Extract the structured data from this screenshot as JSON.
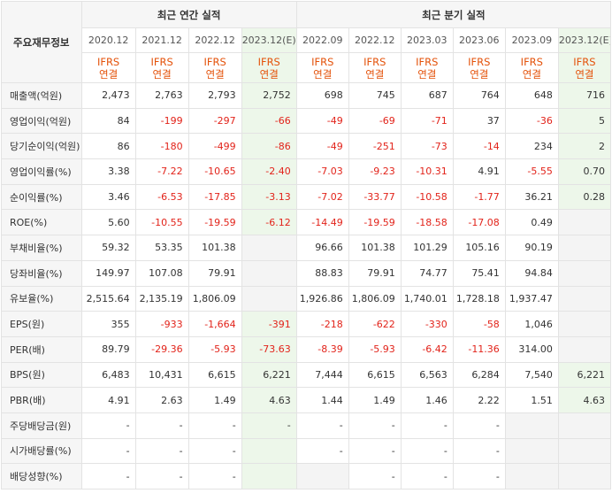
{
  "header": {
    "row_label": "주요재무정보",
    "annual_title": "최근 연간 실적",
    "quarter_title": "최근 분기 실적",
    "periods": [
      "2020.12",
      "2021.12",
      "2022.12",
      "2023.12(E)",
      "2022.09",
      "2022.12",
      "2023.03",
      "2023.06",
      "2023.09",
      "2023.12(E)"
    ],
    "standard_line1": "IFRS",
    "standard_line2": "연결"
  },
  "rows": [
    {
      "label": "매출액(억원)",
      "values": [
        "2,473",
        "2,763",
        "2,793",
        "2,752",
        "698",
        "745",
        "687",
        "764",
        "648",
        "716"
      ]
    },
    {
      "label": "영업이익(억원)",
      "values": [
        "84",
        "-199",
        "-297",
        "-66",
        "-49",
        "-69",
        "-71",
        "37",
        "-36",
        "5"
      ]
    },
    {
      "label": "당기순이익(억원)",
      "values": [
        "86",
        "-180",
        "-499",
        "-86",
        "-49",
        "-251",
        "-73",
        "-14",
        "234",
        "2"
      ]
    },
    {
      "label": "영업이익률(%)",
      "values": [
        "3.38",
        "-7.22",
        "-10.65",
        "-2.40",
        "-7.03",
        "-9.23",
        "-10.31",
        "4.91",
        "-5.55",
        "0.70"
      ]
    },
    {
      "label": "순이익률(%)",
      "values": [
        "3.46",
        "-6.53",
        "-17.85",
        "-3.13",
        "-7.02",
        "-33.77",
        "-10.58",
        "-1.77",
        "36.21",
        "0.28"
      ]
    },
    {
      "label": "ROE(%)",
      "values": [
        "5.60",
        "-10.55",
        "-19.59",
        "-6.12",
        "-14.49",
        "-19.59",
        "-18.58",
        "-17.08",
        "0.49",
        ""
      ]
    },
    {
      "label": "부채비율(%)",
      "values": [
        "59.32",
        "53.35",
        "101.38",
        "",
        "96.66",
        "101.38",
        "101.29",
        "105.16",
        "90.19",
        ""
      ]
    },
    {
      "label": "당좌비율(%)",
      "values": [
        "149.97",
        "107.08",
        "79.91",
        "",
        "88.83",
        "79.91",
        "74.77",
        "75.41",
        "94.84",
        ""
      ]
    },
    {
      "label": "유보율(%)",
      "values": [
        "2,515.64",
        "2,135.19",
        "1,806.09",
        "",
        "1,926.86",
        "1,806.09",
        "1,740.01",
        "1,728.18",
        "1,937.47",
        ""
      ]
    },
    {
      "label": "EPS(원)",
      "values": [
        "355",
        "-933",
        "-1,664",
        "-391",
        "-218",
        "-622",
        "-330",
        "-58",
        "1,046",
        ""
      ]
    },
    {
      "label": "PER(배)",
      "values": [
        "89.79",
        "-29.36",
        "-5.93",
        "-73.63",
        "-8.39",
        "-5.93",
        "-6.42",
        "-11.36",
        "314.00",
        ""
      ]
    },
    {
      "label": "BPS(원)",
      "values": [
        "6,483",
        "10,431",
        "6,615",
        "6,221",
        "7,444",
        "6,615",
        "6,563",
        "6,284",
        "7,540",
        "6,221"
      ]
    },
    {
      "label": "PBR(배)",
      "values": [
        "4.91",
        "2.63",
        "1.49",
        "4.63",
        "1.44",
        "1.49",
        "1.46",
        "2.22",
        "1.51",
        "4.63"
      ]
    },
    {
      "label": "주당배당금(원)",
      "values": [
        "-",
        "-",
        "-",
        "-",
        "-",
        "-",
        "-",
        "-",
        "",
        ""
      ]
    },
    {
      "label": "시가배당률(%)",
      "values": [
        "-",
        "-",
        "-",
        "",
        "-",
        "-",
        "-",
        "-",
        "",
        ""
      ]
    },
    {
      "label": "배당성향(%)",
      "values": [
        "-",
        "-",
        "-",
        "",
        "",
        "-",
        "-",
        "-",
        "",
        ""
      ]
    }
  ]
}
